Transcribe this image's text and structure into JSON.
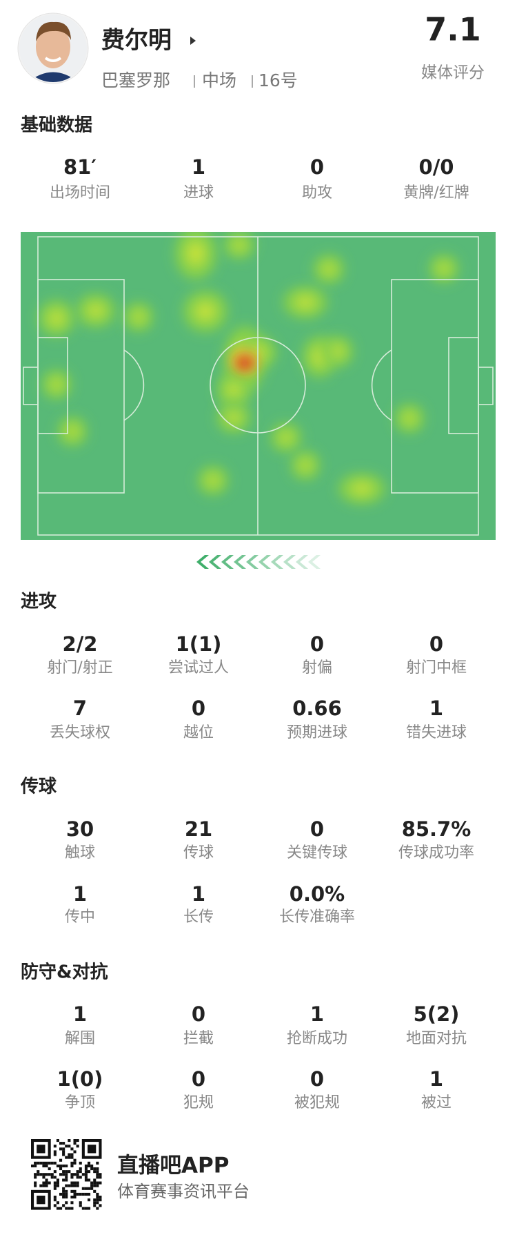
{
  "header": {
    "name": "费尔明",
    "team": "巴塞罗那",
    "position": "中场",
    "number": "16号",
    "rating": "7.1",
    "rating_label": "媒体评分"
  },
  "sections": [
    {
      "title": "基础数据",
      "stats": [
        {
          "value": "81′",
          "label": "出场时间"
        },
        {
          "value": "1",
          "label": "进球"
        },
        {
          "value": "0",
          "label": "助攻"
        },
        {
          "value": "0/0",
          "label": "黄牌/红牌"
        }
      ]
    },
    {
      "title": "进攻",
      "stats": [
        {
          "value": "2/2",
          "label": "射门/射正"
        },
        {
          "value": "1(1)",
          "label": "尝试过人"
        },
        {
          "value": "0",
          "label": "射偏"
        },
        {
          "value": "0",
          "label": "射门中框"
        },
        {
          "value": "7",
          "label": "丢失球权"
        },
        {
          "value": "0",
          "label": "越位"
        },
        {
          "value": "0.66",
          "label": "预期进球"
        },
        {
          "value": "1",
          "label": "错失进球"
        }
      ]
    },
    {
      "title": "传球",
      "stats": [
        {
          "value": "30",
          "label": "触球"
        },
        {
          "value": "21",
          "label": "传球"
        },
        {
          "value": "0",
          "label": "关键传球"
        },
        {
          "value": "85.7%",
          "label": "传球成功率"
        },
        {
          "value": "1",
          "label": "传中"
        },
        {
          "value": "1",
          "label": "长传"
        },
        {
          "value": "0.0%",
          "label": "长传准确率"
        }
      ]
    },
    {
      "title": "防守&对抗",
      "stats": [
        {
          "value": "1",
          "label": "解围"
        },
        {
          "value": "0",
          "label": "拦截"
        },
        {
          "value": "1",
          "label": "抢断成功"
        },
        {
          "value": "5(2)",
          "label": "地面对抗"
        },
        {
          "value": "1(0)",
          "label": "争顶"
        },
        {
          "value": "0",
          "label": "犯规"
        },
        {
          "value": "0",
          "label": "被犯规"
        },
        {
          "value": "1",
          "label": "被过"
        }
      ]
    }
  ],
  "footer": {
    "app_name": "直播吧APP",
    "slogan": "体育赛事资讯平台"
  }
}
